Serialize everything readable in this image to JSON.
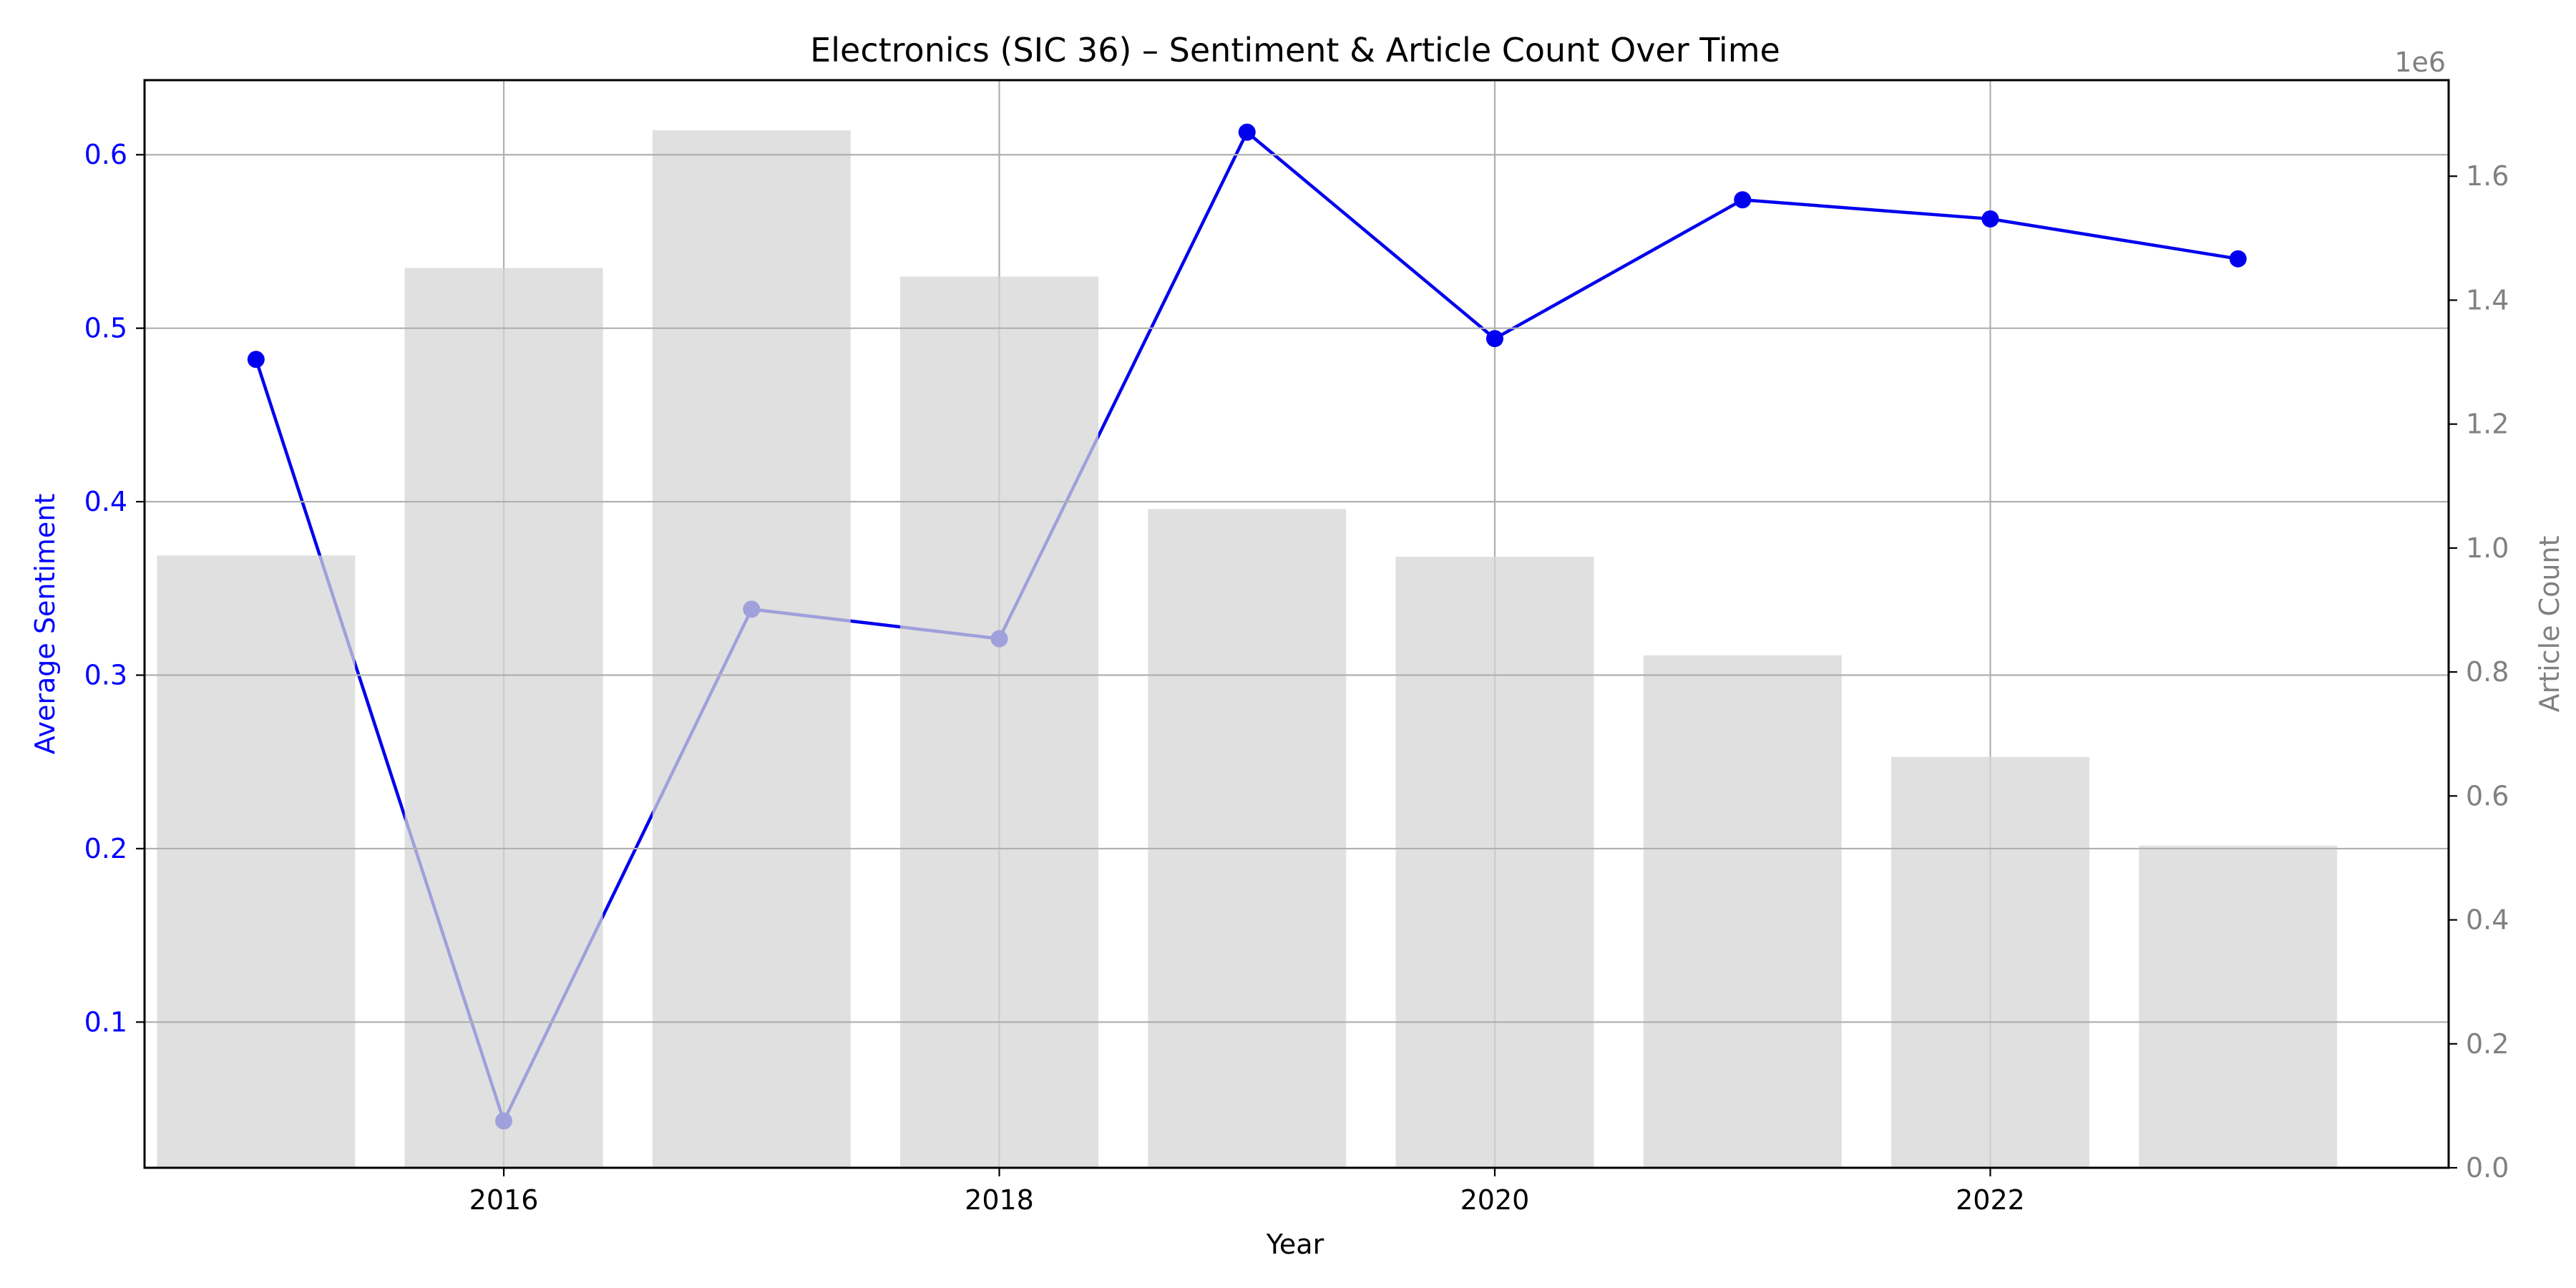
{
  "chart_data": {
    "type": "bar",
    "title": "Electronics (SIC 36) – Sentiment & Article Count Over Time",
    "xlabel": "Year",
    "ylabel_left": "Average Sentiment",
    "ylabel_right": "Article Count",
    "right_axis_offset_label": "1e6",
    "x": [
      2015,
      2016,
      2017,
      2018,
      2019,
      2020,
      2021,
      2022,
      2023
    ],
    "x_ticks": [
      2016,
      2018,
      2020,
      2022
    ],
    "x_tick_labels": [
      "2016",
      "2018",
      "2020",
      "2022"
    ],
    "xlim": [
      2014.55,
      2023.85
    ],
    "y_left_lim": [
      0.016,
      0.643
    ],
    "y_left_ticks": [
      0.1,
      0.2,
      0.3,
      0.4,
      0.5,
      0.6
    ],
    "y_left_tick_labels": [
      "0.1",
      "0.2",
      "0.3",
      "0.4",
      "0.5",
      "0.6"
    ],
    "y_right_lim": [
      0,
      1.755
    ],
    "y_right_ticks": [
      0,
      0.2,
      0.4,
      0.6,
      0.8,
      1.0,
      1.2,
      1.4,
      1.6
    ],
    "y_right_tick_labels": [
      "0.0",
      "0.2",
      "0.4",
      "0.6",
      "0.8",
      "1.0",
      "1.2",
      "1.4",
      "1.6"
    ],
    "grid": true,
    "series": [
      {
        "type": "line",
        "axis": "left",
        "values": [
          0.482,
          0.043,
          0.338,
          0.321,
          0.613,
          0.494,
          0.574,
          0.563,
          0.54
        ]
      },
      {
        "type": "bar",
        "axis": "right",
        "values": [
          0.988,
          1.452,
          1.674,
          1.438,
          1.063,
          0.986,
          0.827,
          0.663,
          0.52
        ]
      }
    ],
    "colors": {
      "line": "#0000ee",
      "bar": "#e0e0e0",
      "left_axis": "#0000ff",
      "right_axis": "#808080",
      "grid": "#b0b0b0",
      "spine": "#000000"
    }
  }
}
